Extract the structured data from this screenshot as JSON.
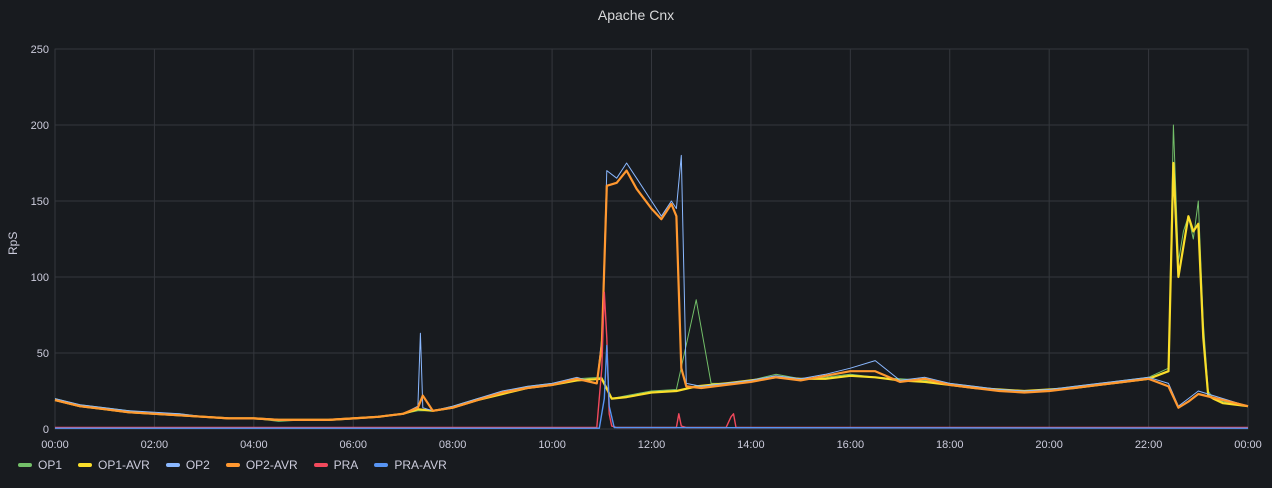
{
  "panel": {
    "title": "Apache Cnx"
  },
  "chart_data": {
    "type": "line",
    "title": "Apache Cnx",
    "ylabel": "RpS",
    "xlabel": "",
    "ylim": [
      0,
      250
    ],
    "xlim": [
      0,
      24
    ],
    "yticks": [
      0,
      50,
      100,
      150,
      200,
      250
    ],
    "xticks": [
      {
        "v": 0,
        "label": "00:00"
      },
      {
        "v": 2,
        "label": "02:00"
      },
      {
        "v": 4,
        "label": "04:00"
      },
      {
        "v": 6,
        "label": "06:00"
      },
      {
        "v": 8,
        "label": "08:00"
      },
      {
        "v": 10,
        "label": "10:00"
      },
      {
        "v": 12,
        "label": "12:00"
      },
      {
        "v": 14,
        "label": "14:00"
      },
      {
        "v": 16,
        "label": "16:00"
      },
      {
        "v": 18,
        "label": "18:00"
      },
      {
        "v": 20,
        "label": "20:00"
      },
      {
        "v": 22,
        "label": "22:00"
      },
      {
        "v": 24,
        "label": "00:00"
      }
    ],
    "grid": true,
    "legend_position": "bottom-left",
    "series": [
      {
        "name": "OP1",
        "color": "#73bf69",
        "width": 1,
        "x": [
          0,
          0.5,
          1,
          1.5,
          2,
          2.5,
          3,
          3.5,
          4,
          4.5,
          5,
          5.5,
          6,
          6.5,
          7,
          7.3,
          7.6,
          8,
          8.5,
          9,
          9.5,
          10,
          10.5,
          11,
          11.2,
          11.5,
          12,
          12.5,
          12.9,
          13.2,
          13.5,
          14,
          14.5,
          15,
          15.5,
          16,
          16.5,
          17,
          17.5,
          18,
          18.5,
          19,
          19.5,
          20,
          20.5,
          21,
          21.5,
          22,
          22.4,
          22.5,
          22.6,
          22.7,
          22.8,
          22.9,
          23,
          23.1,
          23.2,
          23.3,
          23.5,
          24
        ],
        "y": [
          20,
          16,
          14,
          12,
          10,
          10,
          8,
          7,
          7,
          5,
          6,
          6,
          7,
          8,
          10,
          12,
          12,
          15,
          20,
          24,
          28,
          30,
          33,
          34,
          20,
          22,
          25,
          26,
          85,
          30,
          30,
          32,
          36,
          33,
          34,
          36,
          34,
          33,
          32,
          30,
          28,
          26,
          25,
          26,
          28,
          30,
          32,
          34,
          40,
          200,
          110,
          130,
          140,
          125,
          150,
          70,
          25,
          20,
          18,
          15
        ]
      },
      {
        "name": "OP1-AVR",
        "color": "#fade2a",
        "width": 2.2,
        "x": [
          0,
          0.5,
          1,
          1.5,
          2,
          2.5,
          3,
          3.5,
          4,
          4.5,
          5,
          5.5,
          6,
          6.5,
          7,
          7.3,
          7.6,
          8,
          8.5,
          9,
          9.5,
          10,
          10.5,
          11,
          11.2,
          11.5,
          12,
          12.5,
          12.9,
          13.2,
          13.5,
          14,
          14.5,
          15,
          15.5,
          16,
          16.5,
          17,
          17.5,
          18,
          18.5,
          19,
          19.5,
          20,
          20.5,
          21,
          21.5,
          22,
          22.4,
          22.5,
          22.6,
          22.7,
          22.8,
          22.9,
          23,
          23.1,
          23.2,
          23.3,
          23.5,
          24
        ],
        "y": [
          19,
          15,
          13,
          11,
          10,
          9,
          8,
          7,
          7,
          6,
          6,
          6,
          7,
          8,
          10,
          13,
          12,
          14,
          19,
          23,
          27,
          29,
          32,
          33,
          20,
          21,
          24,
          25,
          28,
          29,
          30,
          32,
          34,
          33,
          33,
          35,
          34,
          32,
          31,
          29,
          27,
          26,
          25,
          26,
          27,
          29,
          31,
          33,
          38,
          175,
          100,
          120,
          140,
          130,
          135,
          60,
          22,
          20,
          17,
          15
        ]
      },
      {
        "name": "OP2",
        "color": "#8ab8ff",
        "width": 1,
        "x": [
          0,
          0.5,
          1,
          1.5,
          2,
          2.5,
          3,
          3.5,
          4,
          4.5,
          5,
          5.5,
          6,
          6.5,
          7,
          7.3,
          7.35,
          7.4,
          7.6,
          8,
          8.5,
          9,
          9.5,
          10,
          10.5,
          10.9,
          11.0,
          11.1,
          11.3,
          11.5,
          11.7,
          12,
          12.2,
          12.4,
          12.5,
          12.6,
          12.7,
          13,
          13.5,
          14,
          14.5,
          15,
          15.5,
          16,
          16.5,
          17,
          17.5,
          18,
          18.5,
          19,
          19.5,
          20,
          20.5,
          21,
          21.5,
          22,
          22.4,
          22.6,
          22.8,
          23,
          23.5,
          24
        ],
        "y": [
          20,
          16,
          14,
          12,
          11,
          10,
          8,
          7,
          7,
          6,
          6,
          6,
          7,
          8,
          10,
          15,
          63,
          14,
          12,
          15,
          20,
          25,
          28,
          30,
          34,
          30,
          60,
          170,
          165,
          175,
          165,
          150,
          140,
          150,
          145,
          180,
          30,
          28,
          30,
          32,
          35,
          33,
          36,
          40,
          45,
          32,
          34,
          30,
          28,
          26,
          25,
          26,
          28,
          30,
          32,
          34,
          30,
          15,
          20,
          25,
          20,
          15
        ]
      },
      {
        "name": "OP2-AVR",
        "color": "#ff9830",
        "width": 2.2,
        "x": [
          0,
          0.5,
          1,
          1.5,
          2,
          2.5,
          3,
          3.5,
          4,
          4.5,
          5,
          5.5,
          6,
          6.5,
          7,
          7.3,
          7.4,
          7.6,
          8,
          8.5,
          9,
          9.5,
          10,
          10.5,
          10.9,
          11.0,
          11.1,
          11.3,
          11.5,
          11.7,
          12,
          12.2,
          12.4,
          12.5,
          12.6,
          12.7,
          13,
          13.5,
          14,
          14.5,
          15,
          15.5,
          16,
          16.5,
          17,
          17.5,
          18,
          18.5,
          19,
          19.5,
          20,
          20.5,
          21,
          21.5,
          22,
          22.4,
          22.6,
          22.8,
          23,
          23.5,
          24
        ],
        "y": [
          19,
          15,
          13,
          11,
          10,
          9,
          8,
          7,
          7,
          6,
          6,
          6,
          7,
          8,
          10,
          14,
          22,
          12,
          14,
          19,
          24,
          27,
          29,
          33,
          30,
          55,
          160,
          162,
          170,
          158,
          145,
          138,
          148,
          140,
          40,
          28,
          27,
          29,
          31,
          34,
          32,
          35,
          38,
          38,
          31,
          33,
          29,
          27,
          25,
          24,
          25,
          27,
          29,
          31,
          33,
          28,
          14,
          18,
          23,
          19,
          15
        ]
      },
      {
        "name": "PRA",
        "color": "#f2495c",
        "width": 1.4,
        "x": [
          0,
          10.9,
          11.0,
          11.05,
          11.1,
          11.15,
          11.2,
          11.3,
          12.5,
          12.55,
          12.6,
          12.7,
          13.5,
          13.6,
          13.65,
          13.7,
          24
        ],
        "y": [
          1,
          1,
          40,
          90,
          60,
          10,
          2,
          1,
          1,
          10,
          2,
          1,
          1,
          8,
          10,
          1,
          1
        ]
      },
      {
        "name": "PRA-AVR",
        "color": "#5794f2",
        "width": 1.4,
        "x": [
          0,
          10.95,
          11.05,
          11.1,
          11.15,
          11.25,
          24
        ],
        "y": [
          0.5,
          0.5,
          20,
          55,
          15,
          1,
          0.5
        ]
      }
    ]
  }
}
